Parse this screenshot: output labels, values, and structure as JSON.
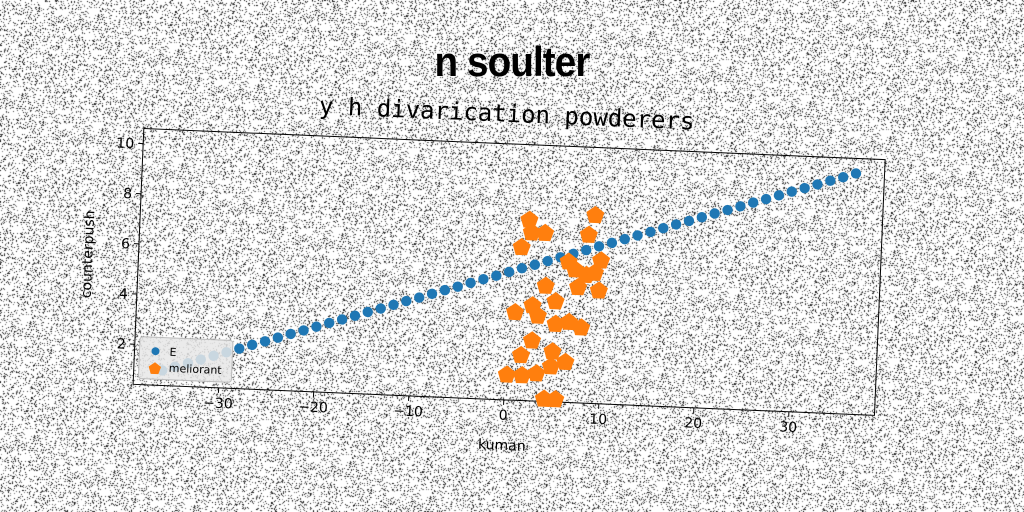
{
  "suptitle": "n soulter",
  "chart_data": {
    "type": "scatter",
    "title": "y h divarication powderers",
    "xlabel": "kuman",
    "ylabel": "counterpush",
    "xlim": [
      -39,
      39
    ],
    "ylim": [
      0.4,
      10.6
    ],
    "xticks": [
      -30,
      -20,
      -10,
      0,
      10,
      20,
      30
    ],
    "xtick_labels": [
      "−30",
      "−20",
      "−10",
      "0",
      "10",
      "20",
      "30"
    ],
    "yticks": [
      2,
      4,
      6,
      8,
      10
    ],
    "ytick_labels": [
      "2",
      "4",
      "6",
      "8",
      "10"
    ],
    "grid": false,
    "legend_position": "lower-left",
    "colors": {
      "series1": "#1f77b4",
      "series2": "#ff7f0e"
    },
    "series": [
      {
        "name": "E",
        "marker": "circle",
        "color": "#1f77b4",
        "x": [
          -36,
          -34.67,
          -33.33,
          -32,
          -30.67,
          -29.33,
          -28,
          -26.67,
          -25.33,
          -24,
          -22.67,
          -21.33,
          -20,
          -18.67,
          -17.33,
          -16,
          -14.67,
          -13.33,
          -12,
          -10.67,
          -9.33,
          -8,
          -6.67,
          -5.33,
          -4,
          -2.67,
          -1.33,
          0,
          1.33,
          2.67,
          4,
          5.33,
          6.67,
          8,
          9.33,
          10.67,
          12,
          13.33,
          14.67,
          16,
          17.33,
          18.67,
          20,
          21.33,
          22.67,
          24,
          25.33,
          26.67,
          28,
          29.33,
          30.67,
          32,
          33.33,
          34.67,
          36
        ],
        "y": [
          1,
          1.17,
          1.33,
          1.5,
          1.67,
          1.83,
          2,
          2.17,
          2.33,
          2.5,
          2.67,
          2.83,
          3,
          3.17,
          3.33,
          3.5,
          3.67,
          3.83,
          4,
          4.17,
          4.33,
          4.5,
          4.67,
          4.83,
          5,
          5.17,
          5.33,
          5.5,
          5.67,
          5.83,
          6,
          6.17,
          6.33,
          6.5,
          6.67,
          6.83,
          7,
          7.17,
          7.33,
          7.5,
          7.67,
          7.83,
          8,
          8.17,
          8.33,
          8.5,
          8.67,
          8.83,
          9,
          9.17,
          9.33,
          9.5,
          9.67,
          9.83,
          10
        ]
      },
      {
        "name": "meliorant",
        "marker": "pentagon",
        "color": "#ff7f0e",
        "x": [
          0.2,
          1.8,
          3.3,
          4.2,
          5.4,
          4.8,
          6.3,
          7.8,
          9.5,
          1.2,
          2.2,
          3.9,
          5.0,
          2.6,
          6.9,
          8.1,
          0.8,
          3.2,
          5.1,
          9.0,
          1.6,
          4.9,
          6.5,
          2.7,
          6.2,
          8.2,
          9.6,
          1.9,
          3.6,
          8.8,
          7.3
        ],
        "y": [
          1.4,
          1.4,
          1.5,
          0.5,
          0.5,
          1.8,
          2.0,
          3.4,
          4.9,
          6.5,
          7.1,
          5.0,
          4.4,
          4.2,
          5.7,
          5.5,
          3.9,
          3.8,
          3.5,
          5.6,
          2.2,
          2.4,
          3.6,
          2.8,
          6.0,
          7.1,
          6.1,
          7.6,
          7.1,
          7.9,
          5.0
        ]
      }
    ]
  }
}
